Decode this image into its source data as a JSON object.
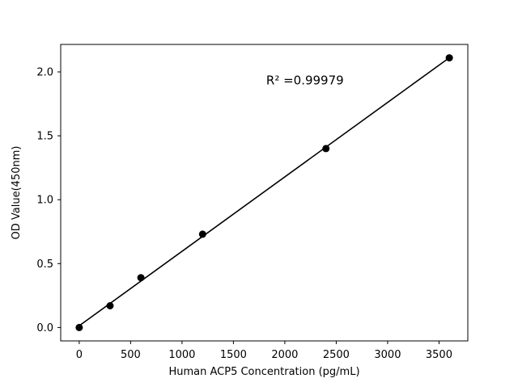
{
  "chart_data": {
    "type": "scatter",
    "x": [
      0,
      300,
      600,
      1200,
      2400,
      3600
    ],
    "y": [
      0.0,
      0.17,
      0.39,
      0.73,
      1.4,
      2.11
    ],
    "fit_line": true,
    "annotation": "R² =0.99979",
    "title": "",
    "xlabel": "Human ACP5 Concentration (pg/mL)",
    "ylabel": "OD Value(450nm)",
    "xlim": [
      -180,
      3780
    ],
    "ylim": [
      -0.105,
      2.215
    ],
    "xticks": [
      0,
      500,
      1000,
      1500,
      2000,
      2500,
      3000,
      3500
    ],
    "yticks": [
      0.0,
      0.5,
      1.0,
      1.5,
      2.0
    ],
    "grid": false,
    "legend": "none",
    "marker_color": "#000000",
    "line_color": "#000000",
    "background_color": "#ffffff"
  }
}
